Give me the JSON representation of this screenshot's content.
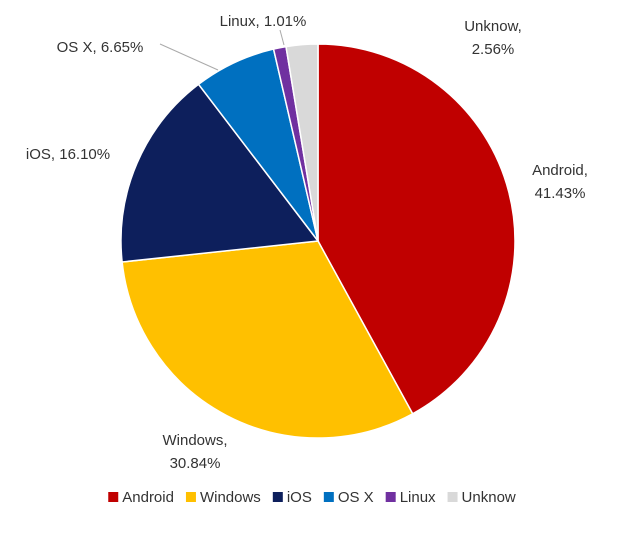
{
  "chart_data": {
    "type": "pie",
    "categories": [
      "Android",
      "Windows",
      "iOS",
      "OS X",
      "Linux",
      "Unknow"
    ],
    "values": [
      41.43,
      30.84,
      16.1,
      6.65,
      1.01,
      2.56
    ],
    "value_labels": [
      "Android, 41.43%",
      "Windows, 30.84%",
      "iOS, 16.10%",
      "OS X, 6.65%",
      "Linux, 1.01%",
      "Unknow, 2.56%"
    ],
    "colors": [
      "#c00000",
      "#ffc000",
      "#0d1f5c",
      "#0070c0",
      "#7030a0",
      "#d9d9d9"
    ],
    "legend": "bottom"
  }
}
